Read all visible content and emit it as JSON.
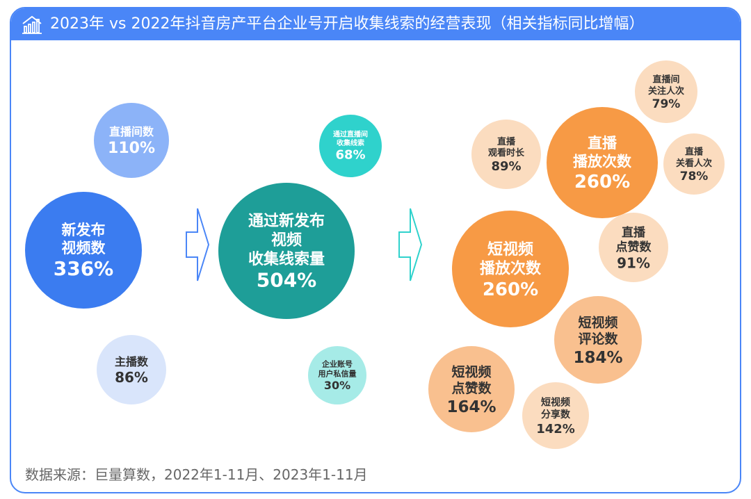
{
  "header": {
    "title": "2023年 vs 2022年抖音房产平台企业号开启收集线索的经营表现（相关指标同比增幅）"
  },
  "footer": {
    "source": "数据来源：巨量算数，2022年1-11月、2023年1-11月"
  },
  "colors": {
    "frame": "#4a86f7",
    "blue_dark": "#3b7cf0",
    "blue_mid": "#8cb3f8",
    "blue_light": "#d9e5fb",
    "teal_dark": "#1e9e98",
    "teal_mid": "#2fd2cc",
    "teal_light": "#a6ebe7",
    "orange_dark": "#f79a45",
    "orange_mid": "#f9c08f",
    "orange_light": "#fbdcbf"
  },
  "chart_data": {
    "type": "bubble",
    "series": [
      {
        "group": "publishing",
        "items": [
          {
            "label": "新发布视频数",
            "value": 336
          },
          {
            "label": "直播间数",
            "value": 110
          },
          {
            "label": "主播数",
            "value": 86
          }
        ]
      },
      {
        "group": "leads",
        "items": [
          {
            "label": "通过新发布视频收集线索量",
            "value": 504
          },
          {
            "label": "通过直播间收集线索",
            "value": 68
          },
          {
            "label": "企业账号用户私信量",
            "value": 30
          }
        ]
      },
      {
        "group": "engagement",
        "items": [
          {
            "label": "直播播放次数",
            "value": 260
          },
          {
            "label": "短视频播放次数",
            "value": 260
          },
          {
            "label": "短视频评论数",
            "value": 184
          },
          {
            "label": "短视频点赞数",
            "value": 164
          },
          {
            "label": "短视频分享数",
            "value": 142
          },
          {
            "label": "直播点赞数",
            "value": 91
          },
          {
            "label": "直播观看时长",
            "value": 89
          },
          {
            "label": "直播间关注人次",
            "value": 79
          },
          {
            "label": "直播关看人次",
            "value": 78
          }
        ]
      }
    ],
    "bubbles": [
      {
        "name": "new-videos",
        "lines": [
          "新发布",
          "视频数"
        ],
        "value": "336%",
        "color": "blue_dark",
        "text": "#ffffff"
      },
      {
        "name": "live-rooms",
        "lines": [
          "直播间数"
        ],
        "value": "110%",
        "color": "blue_mid",
        "text": "#ffffff"
      },
      {
        "name": "anchors",
        "lines": [
          "主播数"
        ],
        "value": "86%",
        "color": "blue_light",
        "text": "#333333"
      },
      {
        "name": "video-leads",
        "lines": [
          "通过新发布",
          "视频",
          "收集线索量"
        ],
        "value": "504%",
        "color": "teal_dark",
        "text": "#ffffff"
      },
      {
        "name": "live-leads",
        "lines": [
          "通过直播间",
          "收集线索"
        ],
        "value": "68%",
        "color": "teal_mid",
        "text": "#ffffff"
      },
      {
        "name": "private-messages",
        "lines": [
          "企业账号",
          "用户私信量"
        ],
        "value": "30%",
        "color": "teal_light",
        "text": "#333333"
      },
      {
        "name": "live-plays",
        "lines": [
          "直播",
          "播放次数"
        ],
        "value": "260%",
        "color": "orange_dark",
        "text": "#ffffff"
      },
      {
        "name": "short-video-plays",
        "lines": [
          "短视频",
          "播放次数"
        ],
        "value": "260%",
        "color": "orange_dark",
        "text": "#ffffff"
      },
      {
        "name": "short-video-comments",
        "lines": [
          "短视频",
          "评论数"
        ],
        "value": "184%",
        "color": "orange_mid",
        "text": "#333333"
      },
      {
        "name": "short-video-likes",
        "lines": [
          "短视频",
          "点赞数"
        ],
        "value": "164%",
        "color": "orange_mid",
        "text": "#333333"
      },
      {
        "name": "short-video-shares",
        "lines": [
          "短视频",
          "分享数"
        ],
        "value": "142%",
        "color": "orange_light",
        "text": "#333333"
      },
      {
        "name": "live-likes",
        "lines": [
          "直播",
          "点赞数"
        ],
        "value": "91%",
        "color": "orange_light",
        "text": "#333333"
      },
      {
        "name": "live-watch-time",
        "lines": [
          "直播",
          "观看时长"
        ],
        "value": "89%",
        "color": "orange_light",
        "text": "#333333"
      },
      {
        "name": "live-follows",
        "lines": [
          "直播间",
          "关注人次"
        ],
        "value": "79%",
        "color": "orange_light",
        "text": "#333333"
      },
      {
        "name": "live-viewers",
        "lines": [
          "直播",
          "关看人次"
        ],
        "value": "78%",
        "color": "orange_light",
        "text": "#333333"
      }
    ]
  }
}
